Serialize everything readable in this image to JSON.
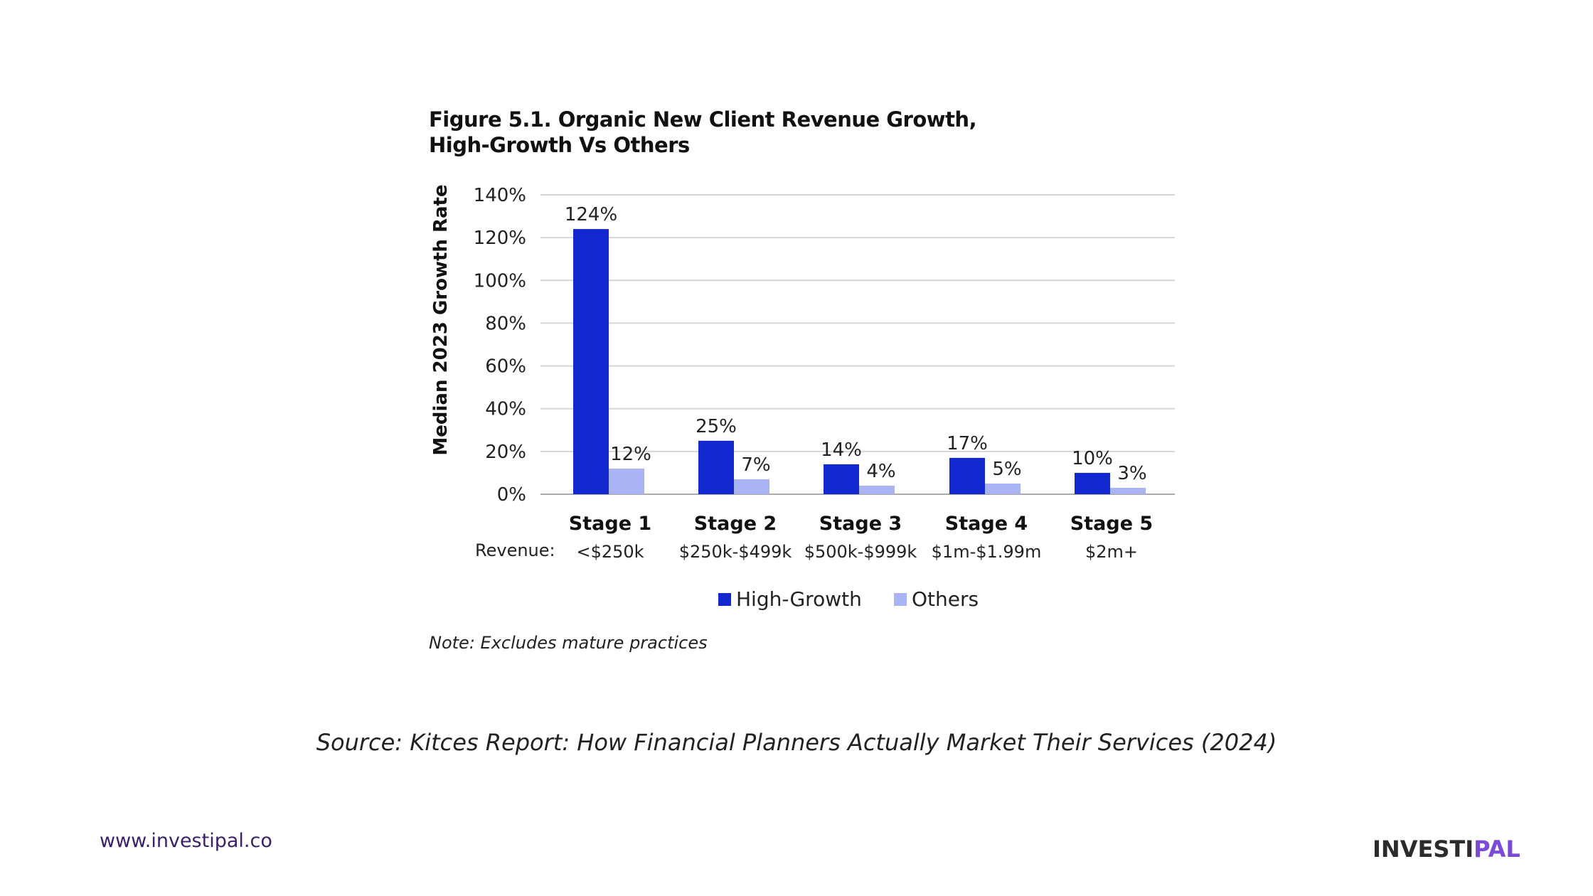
{
  "chart_data": {
    "type": "bar",
    "title_lines": [
      "Figure 5.1. Organic New Client Revenue Growth,",
      "High-Growth Vs Others"
    ],
    "ylabel": "Median 2023 Growth Rate",
    "xlabel": "",
    "yticks": [
      "0%",
      "20%",
      "40%",
      "60%",
      "80%",
      "100%",
      "120%",
      "140%"
    ],
    "ylim": [
      0,
      140
    ],
    "grid": true,
    "categories": [
      "Stage 1",
      "Stage 2",
      "Stage 3",
      "Stage 4",
      "Stage 5"
    ],
    "revenue_prefix": "Revenue:",
    "revenue_labels": [
      "<$250k",
      "$250k-$499k",
      "$500k-$999k",
      "$1m-$1.99m",
      "$2m+"
    ],
    "series": [
      {
        "name": "High-Growth",
        "values": [
          124,
          25,
          14,
          17,
          10
        ],
        "labels": [
          "124%",
          "25%",
          "14%",
          "17%",
          "10%"
        ],
        "color": "#1428d0"
      },
      {
        "name": "Others",
        "values": [
          12,
          7,
          4,
          5,
          3
        ],
        "labels": [
          "12%",
          "7%",
          "4%",
          "5%",
          "3%"
        ],
        "color": "#aab4f5"
      }
    ],
    "legend_position": "bottom-center",
    "note": "Note: Excludes mature practices"
  },
  "source": "Source: Kitces Report: How Financial Planners Actually Market Their Services (2024)",
  "footer": {
    "website": "www.investipal.co",
    "logo_part1": "INVESTI",
    "logo_part2": "PAL"
  }
}
